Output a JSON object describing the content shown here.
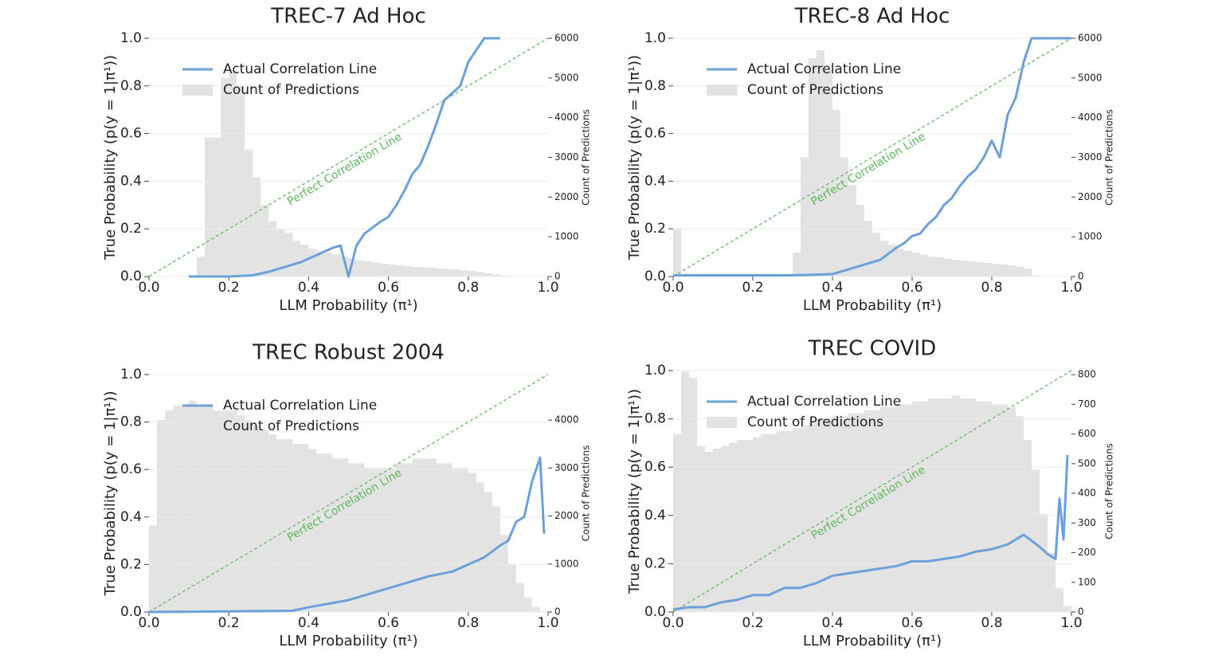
{
  "chart_data": [
    {
      "type": "combo",
      "title": "TREC-7 Ad Hoc",
      "xlabel": "LLM Probability (π¹)",
      "ylabel": "True Probability (p(y = 1|π¹))",
      "y2label": "Count of Predictions",
      "xlim": [
        0,
        1
      ],
      "xticks": [
        {
          "value": 0,
          "label": "0.0"
        },
        0.2,
        0.4,
        0.6,
        0.8,
        {
          "value": 1,
          "label": "1.0"
        }
      ],
      "ylim": [
        0,
        1
      ],
      "yticks": [
        {
          "value": 0,
          "label": "0.0"
        },
        0.2,
        0.4,
        0.6,
        0.8,
        {
          "value": 1,
          "label": "1.0"
        }
      ],
      "y2lim": [
        0,
        6000
      ],
      "y2ticks": [
        0,
        1000,
        2000,
        3000,
        4000,
        5000,
        6000
      ],
      "grid": true,
      "legend": "upper left",
      "reference": {
        "label": "Perfect Correlation Line",
        "color": "#5cb85c",
        "x": [
          0,
          1
        ],
        "values": [
          0,
          1
        ]
      },
      "series": [
        {
          "name": "Actual Correlation Line",
          "type": "line",
          "color": "#6ca0dc",
          "x": [
            0.1,
            0.2,
            0.26,
            0.3,
            0.34,
            0.38,
            0.42,
            0.46,
            0.48,
            0.5,
            0.52,
            0.54,
            0.58,
            0.6,
            0.62,
            0.64,
            0.66,
            0.68,
            0.7,
            0.72,
            0.74,
            0.76,
            0.78,
            0.8,
            0.82,
            0.84,
            0.86,
            0.88
          ],
          "values": [
            0,
            0,
            0.005,
            0.02,
            0.04,
            0.06,
            0.09,
            0.12,
            0.13,
            0,
            0.13,
            0.18,
            0.23,
            0.25,
            0.3,
            0.36,
            0.43,
            0.47,
            0.55,
            0.64,
            0.74,
            0.77,
            0.8,
            0.9,
            0.95,
            1,
            1,
            1
          ]
        },
        {
          "name": "Count of Predictions",
          "type": "histogram",
          "axis": "y2",
          "color": "#e3e3e3",
          "bins": [
            0,
            0.02,
            0.04,
            0.06,
            0.08,
            0.1,
            0.12,
            0.14,
            0.16,
            0.18,
            0.2,
            0.22,
            0.24,
            0.26,
            0.28,
            0.3,
            0.32,
            0.34,
            0.36,
            0.38,
            0.4,
            0.42,
            0.44,
            0.46,
            0.48,
            0.5,
            0.52,
            0.54,
            0.56,
            0.58,
            0.6,
            0.62,
            0.64,
            0.66,
            0.68,
            0.7,
            0.72,
            0.74,
            0.76,
            0.78,
            0.8,
            0.82,
            0.84,
            0.86,
            0.88,
            0.9,
            0.92,
            0.94,
            0.96,
            0.98,
            1
          ],
          "values": [
            0,
            0,
            0,
            0,
            0,
            0,
            500,
            3500,
            3500,
            5000,
            5200,
            4800,
            3200,
            2500,
            1800,
            1400,
            1200,
            1100,
            900,
            800,
            700,
            650,
            600,
            550,
            500,
            450,
            400,
            380,
            350,
            320,
            300,
            280,
            260,
            240,
            230,
            220,
            200,
            190,
            180,
            160,
            140,
            110,
            80,
            50,
            20,
            0,
            0,
            0,
            0,
            0
          ]
        }
      ]
    },
    {
      "type": "combo",
      "title": "TREC-8 Ad Hoc",
      "xlabel": "LLM Probability (π¹)",
      "ylabel": "True Probability (p(y = 1|π¹))",
      "y2label": "Count of Predictions",
      "xlim": [
        0,
        1
      ],
      "xticks": [
        {
          "value": 0,
          "label": "0.0"
        },
        0.2,
        0.4,
        0.6,
        0.8,
        {
          "value": 1,
          "label": "1.0"
        }
      ],
      "ylim": [
        0,
        1
      ],
      "yticks": [
        {
          "value": 0,
          "label": "0.0"
        },
        0.2,
        0.4,
        0.6,
        0.8,
        {
          "value": 1,
          "label": "1.0"
        }
      ],
      "y2lim": [
        0,
        6000
      ],
      "y2ticks": [
        0,
        1000,
        2000,
        3000,
        4000,
        5000,
        6000
      ],
      "grid": true,
      "legend": "upper left",
      "reference": {
        "label": "Perfect Correlation Line",
        "color": "#5cb85c",
        "x": [
          0,
          1
        ],
        "values": [
          0,
          1
        ]
      },
      "series": [
        {
          "name": "Actual Correlation Line",
          "type": "line",
          "color": "#6ca0dc",
          "x": [
            0,
            0.3,
            0.4,
            0.44,
            0.48,
            0.52,
            0.56,
            0.58,
            0.6,
            0.62,
            0.64,
            0.66,
            0.68,
            0.7,
            0.72,
            0.74,
            0.76,
            0.78,
            0.8,
            0.82,
            0.84,
            0.86,
            0.88,
            0.9,
            1
          ],
          "values": [
            0.005,
            0.005,
            0.01,
            0.03,
            0.05,
            0.07,
            0.12,
            0.14,
            0.17,
            0.18,
            0.22,
            0.25,
            0.3,
            0.33,
            0.38,
            0.42,
            0.45,
            0.5,
            0.57,
            0.5,
            0.68,
            0.75,
            0.9,
            1,
            1
          ]
        },
        {
          "name": "Count of Predictions",
          "type": "histogram",
          "axis": "y2",
          "color": "#e3e3e3",
          "bins": [
            0,
            0.02,
            0.04,
            0.06,
            0.08,
            0.1,
            0.12,
            0.14,
            0.16,
            0.18,
            0.2,
            0.22,
            0.24,
            0.26,
            0.28,
            0.3,
            0.32,
            0.34,
            0.36,
            0.38,
            0.4,
            0.42,
            0.44,
            0.46,
            0.48,
            0.5,
            0.52,
            0.54,
            0.56,
            0.58,
            0.6,
            0.62,
            0.64,
            0.66,
            0.68,
            0.7,
            0.72,
            0.74,
            0.76,
            0.78,
            0.8,
            0.82,
            0.84,
            0.86,
            0.88,
            0.9,
            0.92,
            0.94,
            0.96,
            0.98,
            1
          ],
          "values": [
            1200,
            0,
            0,
            0,
            0,
            0,
            0,
            0,
            0,
            0,
            0,
            0,
            0,
            0,
            0,
            600,
            3000,
            5500,
            5700,
            5200,
            4200,
            3000,
            2300,
            1800,
            1400,
            1100,
            900,
            800,
            700,
            650,
            600,
            550,
            500,
            480,
            450,
            420,
            400,
            380,
            360,
            340,
            320,
            300,
            280,
            250,
            200,
            30,
            0,
            0,
            0,
            0
          ]
        }
      ]
    },
    {
      "type": "combo",
      "title": "TREC Robust 2004",
      "xlabel": "LLM Probability (π¹)",
      "ylabel": "True Probability (p(y = 1|π¹))",
      "y2label": "Count of Predictions",
      "xlim": [
        0,
        1
      ],
      "xticks": [
        {
          "value": 0,
          "label": "0.0"
        },
        0.2,
        0.4,
        0.6,
        0.8,
        {
          "value": 1,
          "label": "1.0"
        }
      ],
      "ylim": [
        0,
        1
      ],
      "yticks": [
        {
          "value": 0,
          "label": "0.0"
        },
        0.2,
        0.4,
        0.6,
        0.8,
        {
          "value": 1,
          "label": "1.0"
        }
      ],
      "y2lim": [
        0,
        4950
      ],
      "y2ticks": [
        0,
        1000,
        2000,
        3000,
        4000
      ],
      "grid": true,
      "legend": "upper left",
      "reference": {
        "label": "Perfect Correlation Line",
        "color": "#5cb85c",
        "x": [
          0,
          1
        ],
        "values": [
          0,
          1
        ]
      },
      "series": [
        {
          "name": "Actual Correlation Line",
          "type": "line",
          "color": "#6ca0dc",
          "x": [
            0,
            0.36,
            0.4,
            0.5,
            0.6,
            0.7,
            0.76,
            0.8,
            0.84,
            0.88,
            0.9,
            0.92,
            0.94,
            0.96,
            0.98,
            0.99
          ],
          "values": [
            0,
            0.005,
            0.02,
            0.05,
            0.1,
            0.15,
            0.17,
            0.2,
            0.23,
            0.28,
            0.3,
            0.38,
            0.4,
            0.55,
            0.65,
            0.33
          ]
        },
        {
          "name": "Count of Predictions",
          "type": "histogram",
          "axis": "y2",
          "color": "#e3e3e3",
          "bins": [
            0,
            0.02,
            0.04,
            0.06,
            0.08,
            0.1,
            0.12,
            0.14,
            0.16,
            0.18,
            0.2,
            0.22,
            0.24,
            0.26,
            0.28,
            0.3,
            0.32,
            0.34,
            0.36,
            0.38,
            0.4,
            0.42,
            0.44,
            0.46,
            0.48,
            0.5,
            0.52,
            0.54,
            0.56,
            0.58,
            0.6,
            0.62,
            0.64,
            0.66,
            0.68,
            0.7,
            0.72,
            0.74,
            0.76,
            0.78,
            0.8,
            0.82,
            0.84,
            0.86,
            0.88,
            0.9,
            0.92,
            0.94,
            0.96,
            0.98,
            1
          ],
          "values": [
            1800,
            4000,
            4200,
            4300,
            4300,
            4400,
            4300,
            4300,
            4200,
            4200,
            4200,
            4100,
            4000,
            3900,
            3800,
            3700,
            3600,
            3600,
            3500,
            3500,
            3400,
            3300,
            3300,
            3200,
            3200,
            3100,
            3100,
            3000,
            3000,
            3000,
            3000,
            3100,
            3100,
            3200,
            3200,
            3200,
            3100,
            3100,
            3000,
            3000,
            2900,
            2700,
            2500,
            2200,
            1600,
            1000,
            600,
            300,
            100,
            20
          ]
        }
      ]
    },
    {
      "type": "combo",
      "title": "TREC COVID",
      "xlabel": "LLM Probability (π¹)",
      "ylabel": "True Probability (p(y = 1|π¹))",
      "y2label": "Count of Predictions",
      "xlim": [
        0,
        1
      ],
      "xticks": [
        {
          "value": 0,
          "label": "0.0"
        },
        0.2,
        0.4,
        0.6,
        0.8,
        {
          "value": 1,
          "label": "1.0"
        }
      ],
      "ylim": [
        0,
        1
      ],
      "yticks": [
        {
          "value": 0,
          "label": "0.0"
        },
        0.2,
        0.4,
        0.6,
        0.8,
        {
          "value": 1,
          "label": "1.0"
        }
      ],
      "y2lim": [
        0,
        814
      ],
      "y2ticks": [
        0,
        100,
        200,
        300,
        400,
        500,
        600,
        700,
        800
      ],
      "grid": true,
      "legend": "upper left",
      "reference": {
        "label": "Perfect Correlation Line",
        "color": "#5cb85c",
        "x": [
          0,
          1
        ],
        "values": [
          0,
          1
        ]
      },
      "series": [
        {
          "name": "Actual Correlation Line",
          "type": "line",
          "color": "#6ca0dc",
          "x": [
            0,
            0.04,
            0.08,
            0.12,
            0.16,
            0.2,
            0.24,
            0.28,
            0.32,
            0.36,
            0.4,
            0.44,
            0.48,
            0.52,
            0.56,
            0.6,
            0.64,
            0.68,
            0.72,
            0.76,
            0.8,
            0.84,
            0.88,
            0.92,
            0.94,
            0.96,
            0.97,
            0.98,
            0.99
          ],
          "values": [
            0.01,
            0.02,
            0.02,
            0.04,
            0.05,
            0.07,
            0.07,
            0.1,
            0.1,
            0.12,
            0.15,
            0.16,
            0.17,
            0.18,
            0.19,
            0.21,
            0.21,
            0.22,
            0.23,
            0.25,
            0.26,
            0.28,
            0.32,
            0.27,
            0.24,
            0.22,
            0.47,
            0.3,
            0.65
          ]
        },
        {
          "name": "Count of Predictions",
          "type": "histogram",
          "axis": "y2",
          "color": "#e3e3e3",
          "bins": [
            0,
            0.02,
            0.04,
            0.06,
            0.08,
            0.1,
            0.12,
            0.14,
            0.16,
            0.18,
            0.2,
            0.22,
            0.24,
            0.26,
            0.28,
            0.3,
            0.32,
            0.34,
            0.36,
            0.38,
            0.4,
            0.42,
            0.44,
            0.46,
            0.48,
            0.5,
            0.52,
            0.54,
            0.56,
            0.58,
            0.6,
            0.62,
            0.64,
            0.66,
            0.68,
            0.7,
            0.72,
            0.74,
            0.76,
            0.78,
            0.8,
            0.82,
            0.84,
            0.86,
            0.88,
            0.9,
            0.92,
            0.94,
            0.96,
            0.98,
            1
          ],
          "values": [
            600,
            810,
            790,
            560,
            540,
            550,
            560,
            570,
            580,
            580,
            590,
            600,
            600,
            610,
            610,
            620,
            630,
            640,
            650,
            650,
            660,
            660,
            670,
            670,
            680,
            680,
            690,
            690,
            700,
            700,
            710,
            710,
            720,
            720,
            720,
            730,
            720,
            720,
            710,
            710,
            700,
            700,
            690,
            660,
            580,
            480,
            330,
            200,
            80,
            20
          ]
        }
      ]
    }
  ]
}
